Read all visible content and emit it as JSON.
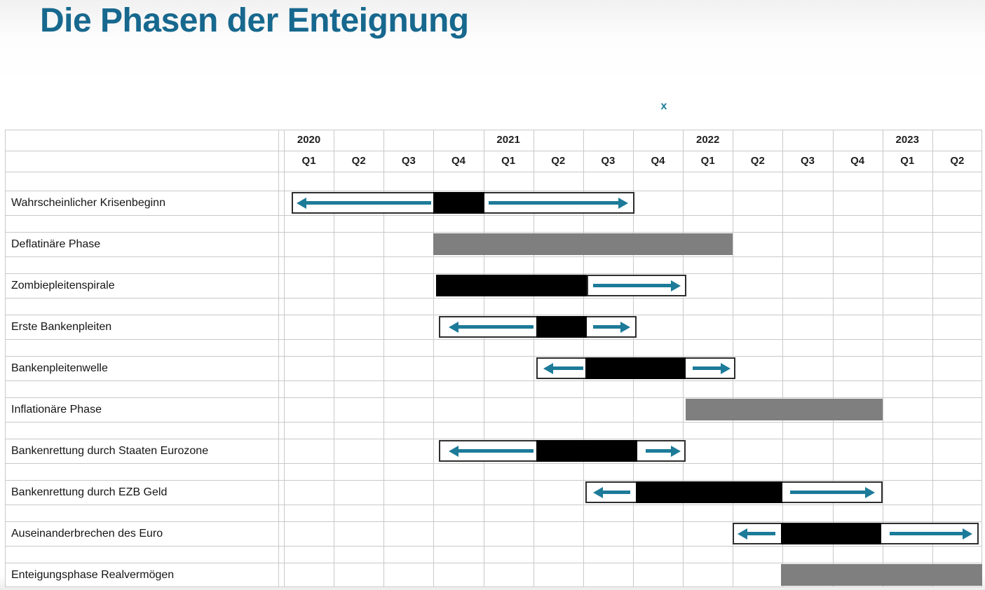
{
  "page": {
    "title": "Die Phasen der Enteignung",
    "marker": "x"
  },
  "colors": {
    "title": "#17688e",
    "accent": "#1d7b99",
    "bar_black": "#000000",
    "bar_gray": "#7f7f7f",
    "grid_line": "#c9c9c9",
    "box_border": "#2e2e2e"
  },
  "chart_data": {
    "type": "gantt",
    "title": "Die Phasen der Enteignung",
    "time_axis": {
      "unit": "quarter",
      "range": "2020 Q1 - 2023 Q2",
      "years": [
        {
          "label": "2020",
          "quarters": [
            "Q1",
            "Q2",
            "Q3",
            "Q4"
          ]
        },
        {
          "label": "2021",
          "quarters": [
            "Q1",
            "Q2",
            "Q3",
            "Q4"
          ]
        },
        {
          "label": "2022",
          "quarters": [
            "Q1",
            "Q2",
            "Q3",
            "Q4"
          ]
        },
        {
          "label": "2023",
          "quarters": [
            "Q1",
            "Q2"
          ]
        }
      ]
    },
    "legend_note": "units are quarters counted from start of 2020 Q1; black = core phase, gray = broad phase, outlined box with teal arrows = uncertainty range",
    "rows": [
      {
        "label": "Wahrscheinlicher Krisenbeginn",
        "bars": [
          {
            "type": "outline",
            "start": 0.15,
            "end": 7.03
          },
          {
            "type": "black",
            "start": 3.0,
            "end": 4.02
          }
        ],
        "arrows": [
          {
            "dir": "left",
            "start": 0.25,
            "end": 2.95
          },
          {
            "dir": "right",
            "start": 4.1,
            "end": 6.9
          }
        ]
      },
      {
        "label": "Deflatinäre Phase",
        "bars": [
          {
            "type": "gray",
            "start": 3.0,
            "end": 9.0
          }
        ],
        "arrows": []
      },
      {
        "label": "Zombiepleitenspirale",
        "bars": [
          {
            "type": "black",
            "start": 3.05,
            "end": 6.07
          },
          {
            "type": "outline",
            "start": 6.07,
            "end": 8.07
          }
        ],
        "arrows": [
          {
            "dir": "right",
            "start": 6.2,
            "end": 7.95
          }
        ]
      },
      {
        "label": "Erste Bankenpleiten",
        "bars": [
          {
            "type": "outline",
            "start": 3.1,
            "end": 7.07
          },
          {
            "type": "black",
            "start": 5.06,
            "end": 6.07
          }
        ],
        "arrows": [
          {
            "dir": "left",
            "start": 3.3,
            "end": 5.0
          },
          {
            "dir": "right",
            "start": 6.2,
            "end": 6.95
          }
        ]
      },
      {
        "label": "Bankenpleitenwelle",
        "bars": [
          {
            "type": "outline",
            "start": 5.06,
            "end": 9.05
          },
          {
            "type": "black",
            "start": 6.04,
            "end": 8.06
          }
        ],
        "arrows": [
          {
            "dir": "left",
            "start": 5.2,
            "end": 6.0
          },
          {
            "dir": "right",
            "start": 8.2,
            "end": 8.95
          }
        ]
      },
      {
        "label": "Inflationäre Phase",
        "bars": [
          {
            "type": "gray",
            "start": 8.05,
            "end": 12.0
          }
        ],
        "arrows": []
      },
      {
        "label": "Bankenrettung durch Staaten Eurozone",
        "bars": [
          {
            "type": "outline",
            "start": 3.1,
            "end": 8.05
          },
          {
            "type": "black",
            "start": 5.06,
            "end": 7.08
          }
        ],
        "arrows": [
          {
            "dir": "left",
            "start": 3.3,
            "end": 5.0
          },
          {
            "dir": "right",
            "start": 7.25,
            "end": 7.95
          }
        ]
      },
      {
        "label": "Bankenrettung durch EZB Geld",
        "bars": [
          {
            "type": "outline",
            "start": 6.05,
            "end": 12.0
          },
          {
            "type": "black",
            "start": 7.05,
            "end": 10.0
          }
        ],
        "arrows": [
          {
            "dir": "left",
            "start": 6.2,
            "end": 6.95
          },
          {
            "dir": "right",
            "start": 10.15,
            "end": 11.85
          }
        ]
      },
      {
        "label": "Auseinanderbrechen des Euro",
        "bars": [
          {
            "type": "outline",
            "start": 9.0,
            "end": 13.93
          },
          {
            "type": "black",
            "start": 9.97,
            "end": 11.97
          }
        ],
        "arrows": [
          {
            "dir": "left",
            "start": 9.1,
            "end": 9.85
          },
          {
            "dir": "right",
            "start": 12.15,
            "end": 13.8
          }
        ]
      },
      {
        "label": "Enteigungsphase Realvermögen",
        "bars": [
          {
            "type": "gray",
            "start": 9.97,
            "end": 14.0
          }
        ],
        "arrows": []
      }
    ]
  }
}
